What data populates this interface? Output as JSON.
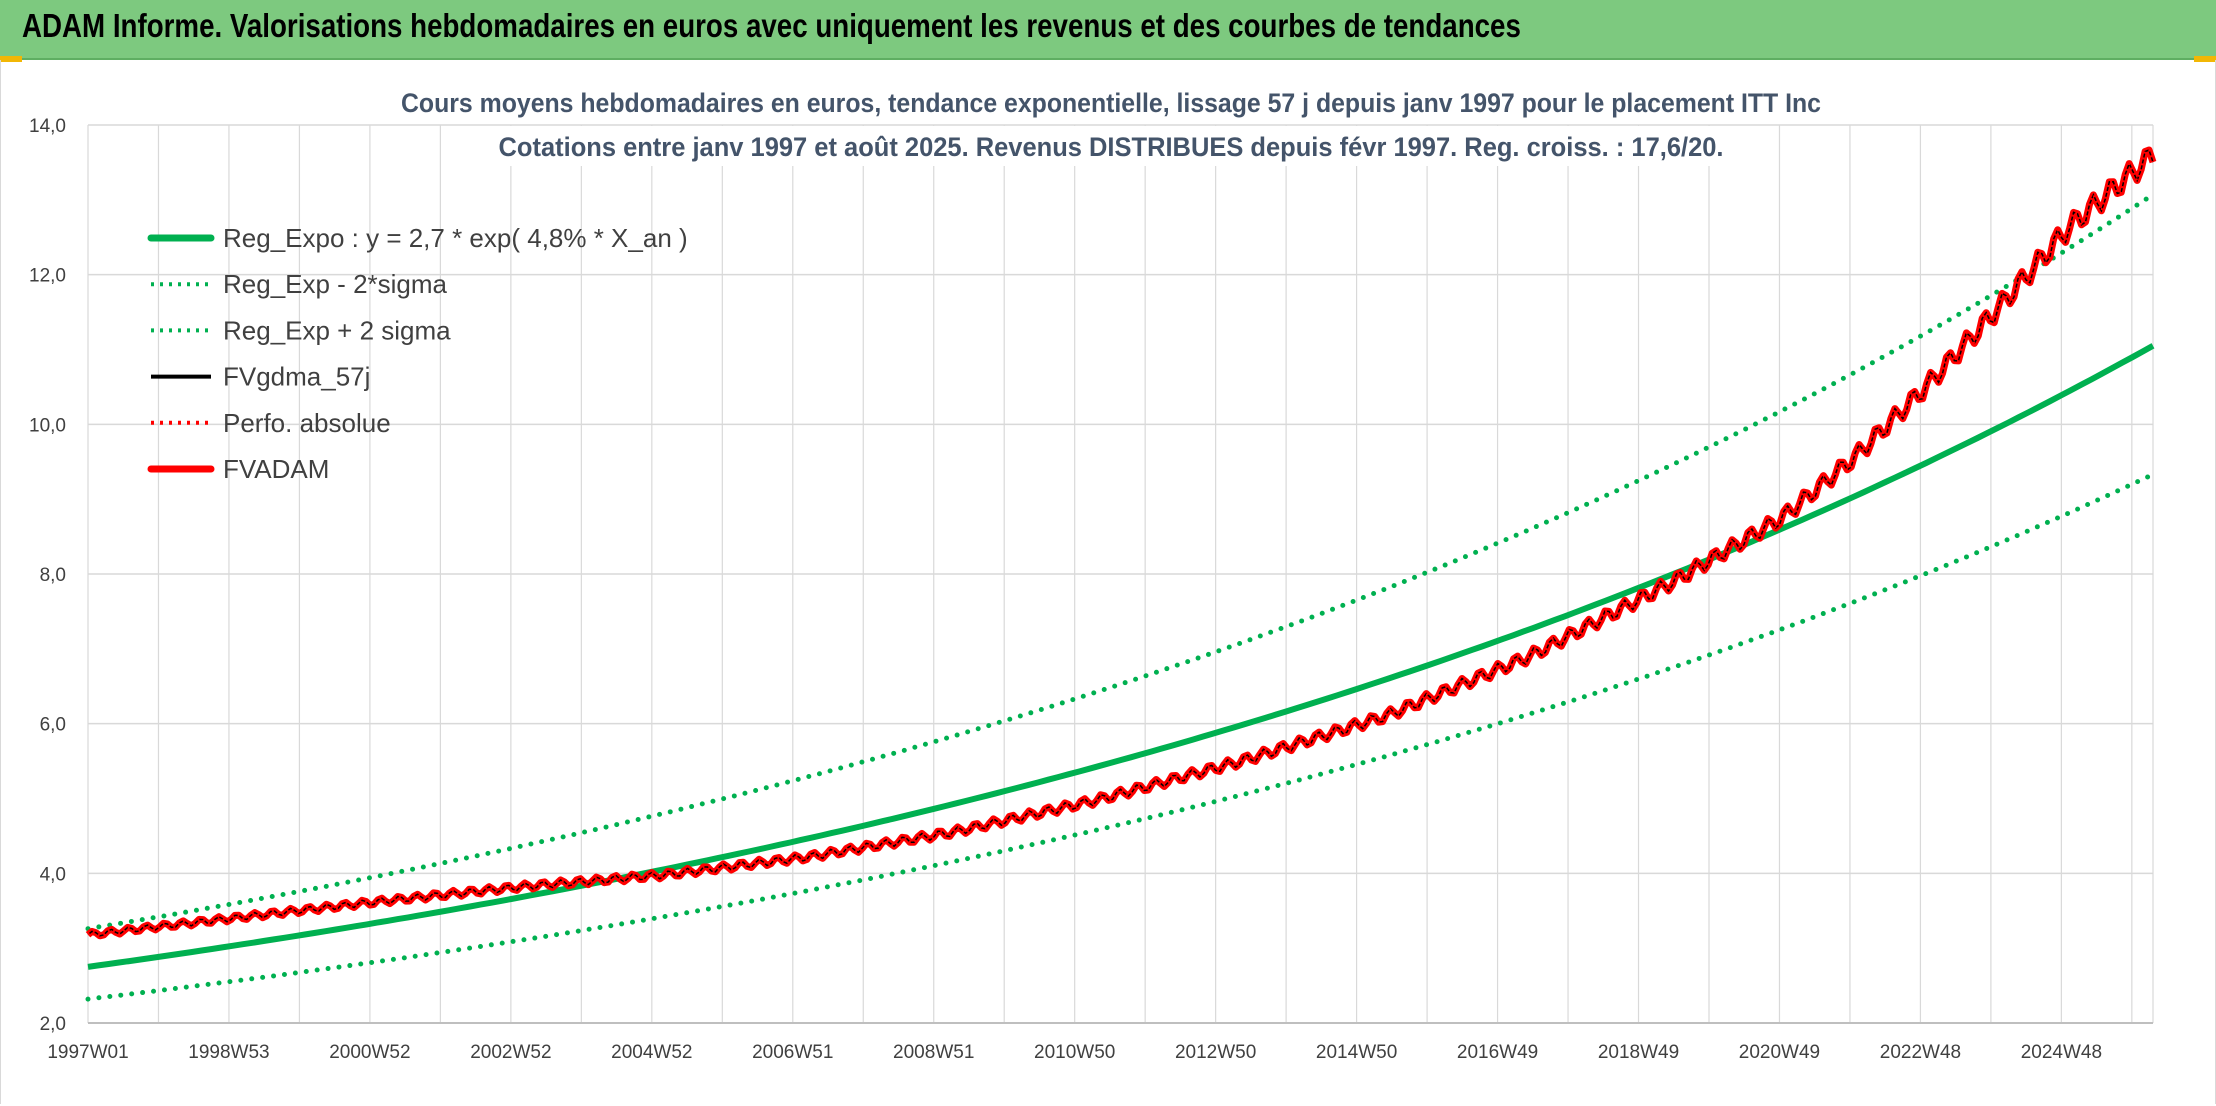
{
  "header": {
    "title": "ADAM Informe. Valorisations hebdomadaires en euros avec uniquement les revenus et des courbes de tendances"
  },
  "colors": {
    "header_bg": "#7dc97f",
    "green": "#00b050",
    "red": "#ff0000",
    "black": "#000000",
    "grid": "#d9d9d9",
    "accent": "#f2b705"
  },
  "chart_data": {
    "type": "line",
    "title_lines": [
      "Cours moyens hebdomadaires en euros, tendance exponentielle, lissage 57 j depuis janv 1997 pour le placement ITT Inc",
      "Cotations entre janv 1997 et août 2025. Revenus DISTRIBUES depuis févr 1997. Reg. croiss. : 17,6/20."
    ],
    "x_tick_labels": [
      "1997W01",
      "1998W53",
      "2000W52",
      "2002W52",
      "2004W52",
      "2006W51",
      "2008W51",
      "2010W50",
      "2012W50",
      "2014W50",
      "2016W49",
      "2018W49",
      "2020W49",
      "2022W48",
      "2024W48"
    ],
    "x_range": [
      "1997W01",
      "2025W34"
    ],
    "y_ticks": [
      2.0,
      4.0,
      6.0,
      8.0,
      10.0,
      12.0,
      14.0
    ],
    "y_tick_labels": [
      "2,0",
      "4,0",
      "6,0",
      "8,0",
      "10,0",
      "12,0",
      "14,0"
    ],
    "ylim": [
      2.0,
      14.0
    ],
    "grid": true,
    "legend_position": "top-left",
    "legend": [
      {
        "label": "Reg_Expo : y = 2,7 * exp( 4,8% *  X_an )",
        "color": "#00b050",
        "style": "solid-thick"
      },
      {
        "label": "Reg_Exp - 2*sigma",
        "color": "#00b050",
        "style": "dotted"
      },
      {
        "label": "Reg_Exp + 2 sigma",
        "color": "#00b050",
        "style": "dotted"
      },
      {
        "label": "FVgdma_57j",
        "color": "#000000",
        "style": "solid"
      },
      {
        "label": "Perfo. absolue",
        "color": "#ff0000",
        "style": "dotted"
      },
      {
        "label": "FVADAM",
        "color": "#ff0000",
        "style": "solid-thick"
      }
    ],
    "series": [
      {
        "name": "Reg_Expo : y = 2,7 * exp( 4,8% *  X_an )",
        "x": [
          1997.0,
          2000.0,
          2003.0,
          2006.0,
          2009.0,
          2012.0,
          2015.0,
          2018.0,
          2021.0,
          2024.0,
          2025.65
        ],
        "values": [
          2.75,
          3.17,
          3.67,
          4.27,
          4.95,
          5.73,
          6.66,
          7.72,
          8.93,
          10.37,
          11.05
        ]
      },
      {
        "name": "Reg_Exp - 2*sigma",
        "x": [
          1997.0,
          2000.0,
          2003.0,
          2006.0,
          2009.0,
          2012.0,
          2015.0,
          2018.0,
          2021.0,
          2024.0,
          2025.65
        ],
        "values": [
          2.32,
          2.68,
          3.1,
          3.6,
          4.17,
          4.84,
          5.61,
          6.51,
          7.54,
          8.76,
          9.33
        ]
      },
      {
        "name": "Reg_Exp + 2 sigma",
        "x": [
          1997.0,
          2000.0,
          2003.0,
          2006.0,
          2009.0,
          2012.0,
          2015.0,
          2018.0,
          2021.0,
          2024.0,
          2025.65
        ],
        "values": [
          3.26,
          3.76,
          4.35,
          5.05,
          5.86,
          6.78,
          7.87,
          9.13,
          10.58,
          12.27,
          13.07
        ]
      },
      {
        "name": "FVADAM",
        "x": [
          1997.0,
          1999.0,
          2001.0,
          2003.0,
          2005.0,
          2007.0,
          2009.0,
          2011.0,
          2013.0,
          2015.0,
          2017.0,
          2019.0,
          2020.5,
          2021.5,
          2022.5,
          2023.5,
          2024.5,
          2025.65
        ],
        "values": [
          3.18,
          3.4,
          3.62,
          3.82,
          3.98,
          4.22,
          4.55,
          4.98,
          5.5,
          6.1,
          6.9,
          7.9,
          8.75,
          9.55,
          10.5,
          11.55,
          12.65,
          13.6
        ]
      },
      {
        "name": "FVgdma_57j",
        "x": [
          1997.0,
          1999.0,
          2001.0,
          2003.0,
          2005.0,
          2007.0,
          2009.0,
          2011.0,
          2013.0,
          2015.0,
          2017.0,
          2019.0,
          2020.5,
          2021.5,
          2022.5,
          2023.5,
          2024.5,
          2025.65
        ],
        "values": [
          3.18,
          3.4,
          3.62,
          3.82,
          3.98,
          4.22,
          4.55,
          4.98,
          5.5,
          6.1,
          6.9,
          7.9,
          8.75,
          9.55,
          10.5,
          11.55,
          12.65,
          13.6
        ]
      }
    ]
  }
}
